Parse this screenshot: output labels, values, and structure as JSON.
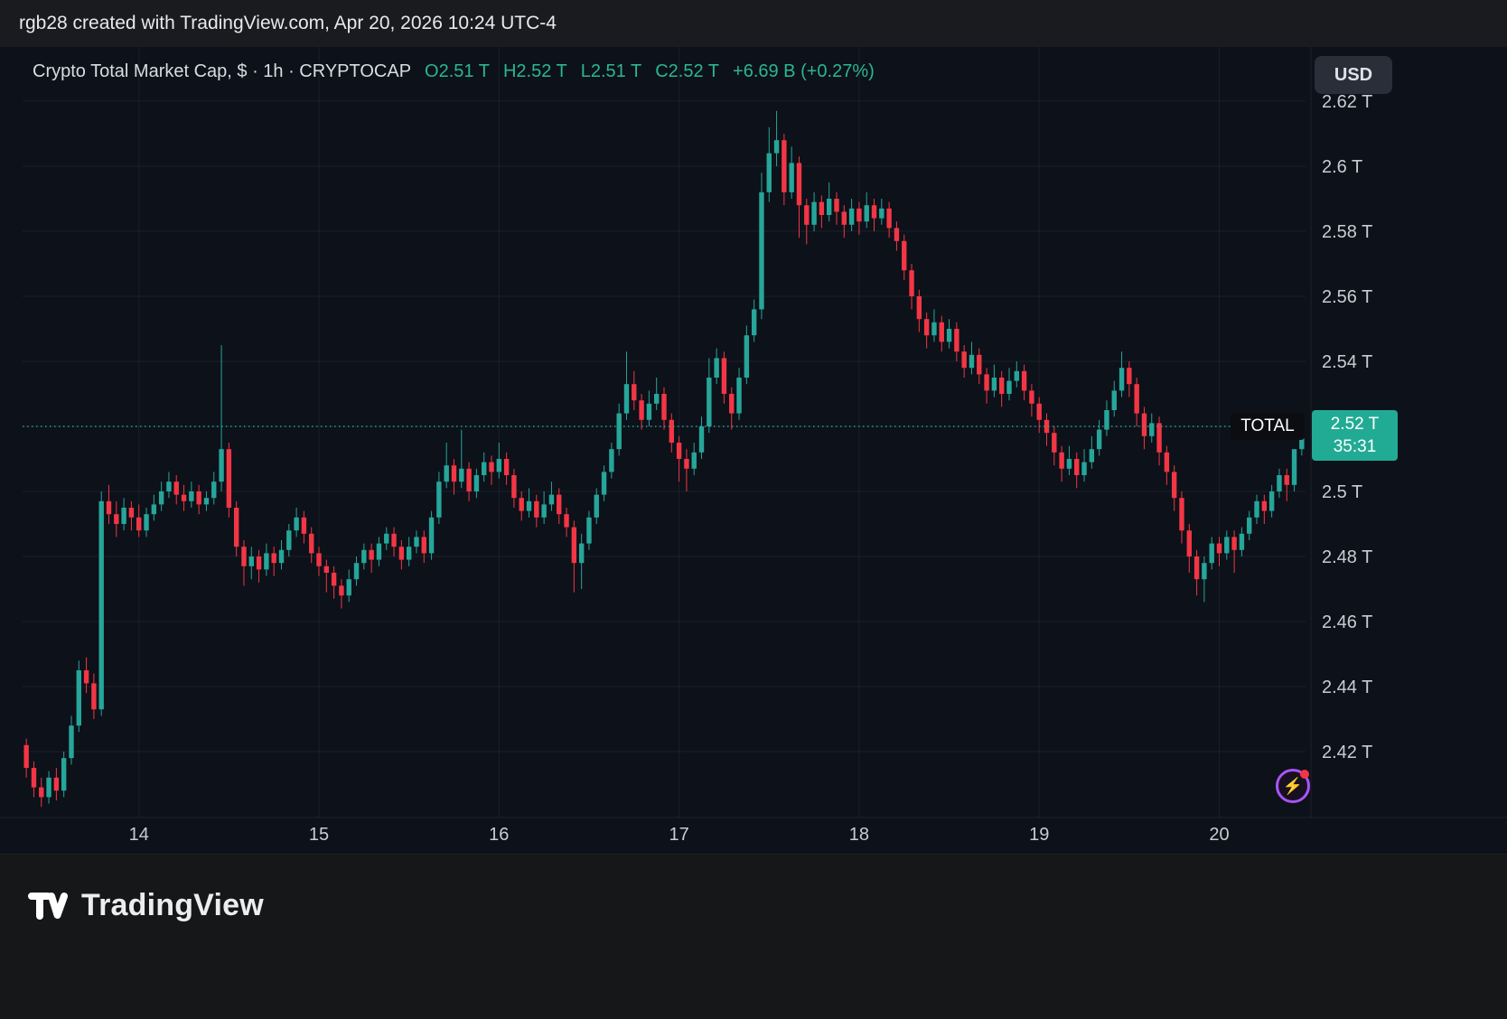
{
  "header": {
    "attribution": "rgb28 created with TradingView.com, Apr 20, 2026 10:24 UTC-4"
  },
  "chart_header": {
    "symbol_title": "Crypto Total Market Cap, $ · 1h · CRYPTOCAP",
    "ohlc": [
      {
        "label": "O",
        "value": "2.51 T"
      },
      {
        "label": "H",
        "value": "2.52 T"
      },
      {
        "label": "L",
        "value": "2.51 T"
      },
      {
        "label": "C",
        "value": "2.52 T"
      }
    ],
    "change": "+6.69 B (+0.27%)",
    "currency_button": "USD"
  },
  "price_axis": {
    "current_symbol_badge": "TOTAL",
    "current_price_label": "2.52 T",
    "countdown": "35:31"
  },
  "footer": {
    "brand": "TradingView"
  },
  "colors": {
    "up": "#26a69a",
    "down": "#f23645",
    "background": "#0d1119",
    "panel": "#17181b",
    "grid": "rgba(240,243,250,0.06)",
    "axis_text": "#c8ccd3",
    "title_text": "#d9dce2",
    "legend_green": "#2cb597",
    "badge_green": "#22ab94"
  },
  "chart_data": {
    "type": "candlestick",
    "title": "Crypto Total Market Cap",
    "symbol": "CRYPTOCAP:TOTAL",
    "interval": "1h",
    "unit": "USD trillions",
    "y_range": [
      2.42,
      2.62
    ],
    "current_price": 2.52,
    "ohlc_current": {
      "open": 2.51,
      "high": 2.52,
      "low": 2.51,
      "close": 2.52,
      "change_abs": "+6.69 B",
      "change_pct": "+0.27%"
    },
    "y_ticks": [
      {
        "price": 2.62,
        "label": "2.62 T"
      },
      {
        "price": 2.6,
        "label": "2.6 T"
      },
      {
        "price": 2.58,
        "label": "2.58 T"
      },
      {
        "price": 2.56,
        "label": "2.56 T"
      },
      {
        "price": 2.54,
        "label": "2.54 T"
      },
      {
        "price": 2.52,
        "label": "2.52 T"
      },
      {
        "price": 2.5,
        "label": "2.5 T"
      },
      {
        "price": 2.48,
        "label": "2.48 T"
      },
      {
        "price": 2.46,
        "label": "2.46 T"
      },
      {
        "price": 2.44,
        "label": "2.44 T"
      },
      {
        "price": 2.42,
        "label": "2.42 T"
      }
    ],
    "x_labels": [
      {
        "index": 15,
        "label": "14"
      },
      {
        "index": 39,
        "label": "15"
      },
      {
        "index": 63,
        "label": "16"
      },
      {
        "index": 87,
        "label": "17"
      },
      {
        "index": 111,
        "label": "18"
      },
      {
        "index": 135,
        "label": "19"
      },
      {
        "index": 159,
        "label": "20"
      }
    ],
    "candles": [
      [
        2.422,
        2.424,
        2.412,
        2.415
      ],
      [
        2.415,
        2.417,
        2.406,
        2.409
      ],
      [
        2.409,
        2.412,
        2.403,
        2.406
      ],
      [
        2.406,
        2.414,
        2.404,
        2.412
      ],
      [
        2.412,
        2.415,
        2.405,
        2.408
      ],
      [
        2.408,
        2.42,
        2.406,
        2.418
      ],
      [
        2.418,
        2.431,
        2.416,
        2.428
      ],
      [
        2.428,
        2.448,
        2.426,
        2.445
      ],
      [
        2.445,
        2.449,
        2.438,
        2.441
      ],
      [
        2.441,
        2.444,
        2.43,
        2.433
      ],
      [
        2.433,
        2.5,
        2.431,
        2.497
      ],
      [
        2.497,
        2.502,
        2.49,
        2.493
      ],
      [
        2.493,
        2.497,
        2.486,
        2.49
      ],
      [
        2.49,
        2.498,
        2.488,
        2.495
      ],
      [
        2.495,
        2.497,
        2.488,
        2.492
      ],
      [
        2.492,
        2.496,
        2.486,
        2.488
      ],
      [
        2.488,
        2.495,
        2.486,
        2.493
      ],
      [
        2.493,
        2.499,
        2.491,
        2.496
      ],
      [
        2.496,
        2.503,
        2.494,
        2.5
      ],
      [
        2.5,
        2.506,
        2.498,
        2.503
      ],
      [
        2.503,
        2.505,
        2.496,
        2.499
      ],
      [
        2.499,
        2.502,
        2.494,
        2.497
      ],
      [
        2.497,
        2.503,
        2.495,
        2.5
      ],
      [
        2.5,
        2.502,
        2.493,
        2.496
      ],
      [
        2.496,
        2.5,
        2.494,
        2.498
      ],
      [
        2.498,
        2.506,
        2.496,
        2.503
      ],
      [
        2.503,
        2.545,
        2.5,
        2.513
      ],
      [
        2.513,
        2.515,
        2.492,
        2.495
      ],
      [
        2.495,
        2.497,
        2.48,
        2.483
      ],
      [
        2.483,
        2.485,
        2.471,
        2.477
      ],
      [
        2.477,
        2.483,
        2.473,
        2.48
      ],
      [
        2.48,
        2.482,
        2.472,
        2.476
      ],
      [
        2.476,
        2.484,
        2.474,
        2.481
      ],
      [
        2.481,
        2.483,
        2.474,
        2.478
      ],
      [
        2.478,
        2.485,
        2.476,
        2.482
      ],
      [
        2.482,
        2.49,
        2.48,
        2.488
      ],
      [
        2.488,
        2.495,
        2.486,
        2.492
      ],
      [
        2.492,
        2.494,
        2.484,
        2.487
      ],
      [
        2.487,
        2.489,
        2.478,
        2.481
      ],
      [
        2.481,
        2.483,
        2.474,
        2.477
      ],
      [
        2.477,
        2.479,
        2.469,
        2.475
      ],
      [
        2.475,
        2.477,
        2.467,
        2.471
      ],
      [
        2.471,
        2.473,
        2.464,
        2.468
      ],
      [
        2.468,
        2.476,
        2.466,
        2.473
      ],
      [
        2.473,
        2.48,
        2.471,
        2.478
      ],
      [
        2.478,
        2.484,
        2.476,
        2.482
      ],
      [
        2.482,
        2.484,
        2.475,
        2.479
      ],
      [
        2.479,
        2.486,
        2.477,
        2.484
      ],
      [
        2.484,
        2.489,
        2.482,
        2.487
      ],
      [
        2.487,
        2.489,
        2.48,
        2.483
      ],
      [
        2.483,
        2.485,
        2.476,
        2.479
      ],
      [
        2.479,
        2.486,
        2.477,
        2.483
      ],
      [
        2.483,
        2.488,
        2.481,
        2.486
      ],
      [
        2.486,
        2.488,
        2.478,
        2.481
      ],
      [
        2.481,
        2.494,
        2.479,
        2.492
      ],
      [
        2.492,
        2.506,
        2.49,
        2.503
      ],
      [
        2.503,
        2.515,
        2.501,
        2.508
      ],
      [
        2.508,
        2.51,
        2.499,
        2.503
      ],
      [
        2.503,
        2.519,
        2.501,
        2.507
      ],
      [
        2.507,
        2.509,
        2.497,
        2.5
      ],
      [
        2.5,
        2.507,
        2.498,
        2.505
      ],
      [
        2.505,
        2.512,
        2.503,
        2.509
      ],
      [
        2.509,
        2.511,
        2.502,
        2.506
      ],
      [
        2.506,
        2.515,
        2.504,
        2.51
      ],
      [
        2.51,
        2.512,
        2.502,
        2.505
      ],
      [
        2.505,
        2.507,
        2.495,
        2.498
      ],
      [
        2.498,
        2.5,
        2.491,
        2.494
      ],
      [
        2.494,
        2.501,
        2.492,
        2.497
      ],
      [
        2.497,
        2.499,
        2.489,
        2.492
      ],
      [
        2.492,
        2.5,
        2.49,
        2.496
      ],
      [
        2.496,
        2.503,
        2.494,
        2.499
      ],
      [
        2.499,
        2.501,
        2.49,
        2.493
      ],
      [
        2.493,
        2.495,
        2.486,
        2.489
      ],
      [
        2.489,
        2.491,
        2.469,
        2.478
      ],
      [
        2.478,
        2.487,
        2.47,
        2.484
      ],
      [
        2.484,
        2.494,
        2.482,
        2.492
      ],
      [
        2.492,
        2.501,
        2.49,
        2.499
      ],
      [
        2.499,
        2.508,
        2.497,
        2.506
      ],
      [
        2.506,
        2.515,
        2.504,
        2.513
      ],
      [
        2.513,
        2.527,
        2.511,
        2.524
      ],
      [
        2.524,
        2.543,
        2.522,
        2.533
      ],
      [
        2.533,
        2.537,
        2.525,
        2.528
      ],
      [
        2.528,
        2.53,
        2.519,
        2.522
      ],
      [
        2.522,
        2.531,
        2.52,
        2.527
      ],
      [
        2.527,
        2.535,
        2.525,
        2.53
      ],
      [
        2.53,
        2.532,
        2.519,
        2.522
      ],
      [
        2.522,
        2.524,
        2.512,
        2.515
      ],
      [
        2.515,
        2.517,
        2.503,
        2.51
      ],
      [
        2.51,
        2.513,
        2.5,
        2.507
      ],
      [
        2.507,
        2.515,
        2.505,
        2.512
      ],
      [
        2.512,
        2.523,
        2.51,
        2.52
      ],
      [
        2.52,
        2.541,
        2.518,
        2.535
      ],
      [
        2.535,
        2.544,
        2.533,
        2.541
      ],
      [
        2.541,
        2.543,
        2.527,
        2.53
      ],
      [
        2.53,
        2.532,
        2.519,
        2.524
      ],
      [
        2.524,
        2.538,
        2.522,
        2.535
      ],
      [
        2.535,
        2.551,
        2.533,
        2.548
      ],
      [
        2.548,
        2.559,
        2.546,
        2.556
      ],
      [
        2.556,
        2.598,
        2.553,
        2.592
      ],
      [
        2.592,
        2.612,
        2.589,
        2.604
      ],
      [
        2.604,
        2.617,
        2.6,
        2.608
      ],
      [
        2.608,
        2.61,
        2.588,
        2.592
      ],
      [
        2.592,
        2.606,
        2.59,
        2.601
      ],
      [
        2.601,
        2.603,
        2.578,
        2.588
      ],
      [
        2.588,
        2.59,
        2.576,
        2.582
      ],
      [
        2.582,
        2.592,
        2.58,
        2.589
      ],
      [
        2.589,
        2.591,
        2.581,
        2.585
      ],
      [
        2.585,
        2.595,
        2.583,
        2.59
      ],
      [
        2.59,
        2.592,
        2.582,
        2.586
      ],
      [
        2.586,
        2.588,
        2.578,
        2.582
      ],
      [
        2.582,
        2.59,
        2.58,
        2.587
      ],
      [
        2.587,
        2.589,
        2.579,
        2.583
      ],
      [
        2.583,
        2.592,
        2.581,
        2.588
      ],
      [
        2.588,
        2.59,
        2.58,
        2.584
      ],
      [
        2.584,
        2.59,
        2.582,
        2.587
      ],
      [
        2.587,
        2.589,
        2.578,
        2.581
      ],
      [
        2.581,
        2.583,
        2.574,
        2.577
      ],
      [
        2.577,
        2.579,
        2.565,
        2.568
      ],
      [
        2.568,
        2.57,
        2.556,
        2.56
      ],
      [
        2.56,
        2.562,
        2.549,
        2.553
      ],
      [
        2.553,
        2.555,
        2.544,
        2.548
      ],
      [
        2.548,
        2.556,
        2.546,
        2.552
      ],
      [
        2.552,
        2.554,
        2.543,
        2.546
      ],
      [
        2.546,
        2.553,
        2.544,
        2.55
      ],
      [
        2.55,
        2.552,
        2.54,
        2.543
      ],
      [
        2.543,
        2.545,
        2.535,
        2.538
      ],
      [
        2.538,
        2.546,
        2.536,
        2.542
      ],
      [
        2.542,
        2.544,
        2.533,
        2.536
      ],
      [
        2.536,
        2.538,
        2.527,
        2.531
      ],
      [
        2.531,
        2.539,
        2.529,
        2.535
      ],
      [
        2.535,
        2.537,
        2.526,
        2.53
      ],
      [
        2.53,
        2.538,
        2.528,
        2.534
      ],
      [
        2.534,
        2.54,
        2.532,
        2.537
      ],
      [
        2.537,
        2.539,
        2.528,
        2.531
      ],
      [
        2.531,
        2.533,
        2.523,
        2.527
      ],
      [
        2.527,
        2.529,
        2.518,
        2.522
      ],
      [
        2.522,
        2.524,
        2.514,
        2.518
      ],
      [
        2.518,
        2.52,
        2.508,
        2.512
      ],
      [
        2.512,
        2.514,
        2.503,
        2.507
      ],
      [
        2.507,
        2.514,
        2.505,
        2.51
      ],
      [
        2.51,
        2.512,
        2.501,
        2.505
      ],
      [
        2.505,
        2.513,
        2.503,
        2.509
      ],
      [
        2.509,
        2.517,
        2.507,
        2.513
      ],
      [
        2.513,
        2.522,
        2.511,
        2.519
      ],
      [
        2.519,
        2.528,
        2.517,
        2.525
      ],
      [
        2.525,
        2.534,
        2.523,
        2.531
      ],
      [
        2.531,
        2.543,
        2.529,
        2.538
      ],
      [
        2.538,
        2.54,
        2.529,
        2.533
      ],
      [
        2.533,
        2.535,
        2.52,
        2.524
      ],
      [
        2.524,
        2.526,
        2.513,
        2.517
      ],
      [
        2.517,
        2.524,
        2.515,
        2.521
      ],
      [
        2.521,
        2.523,
        2.508,
        2.512
      ],
      [
        2.512,
        2.514,
        2.502,
        2.506
      ],
      [
        2.506,
        2.508,
        2.494,
        2.498
      ],
      [
        2.498,
        2.5,
        2.484,
        2.488
      ],
      [
        2.488,
        2.49,
        2.475,
        2.48
      ],
      [
        2.48,
        2.482,
        2.468,
        2.473
      ],
      [
        2.473,
        2.48,
        2.466,
        2.478
      ],
      [
        2.478,
        2.486,
        2.476,
        2.484
      ],
      [
        2.484,
        2.486,
        2.477,
        2.481
      ],
      [
        2.481,
        2.488,
        2.479,
        2.486
      ],
      [
        2.486,
        2.488,
        2.475,
        2.482
      ],
      [
        2.482,
        2.489,
        2.48,
        2.487
      ],
      [
        2.487,
        2.494,
        2.485,
        2.492
      ],
      [
        2.492,
        2.499,
        2.49,
        2.497
      ],
      [
        2.497,
        2.499,
        2.49,
        2.494
      ],
      [
        2.494,
        2.502,
        2.492,
        2.5
      ],
      [
        2.5,
        2.507,
        2.498,
        2.505
      ],
      [
        2.505,
        2.507,
        2.497,
        2.502
      ],
      [
        2.502,
        2.511,
        2.5,
        2.513
      ],
      [
        2.513,
        2.522,
        2.511,
        2.52
      ]
    ]
  }
}
